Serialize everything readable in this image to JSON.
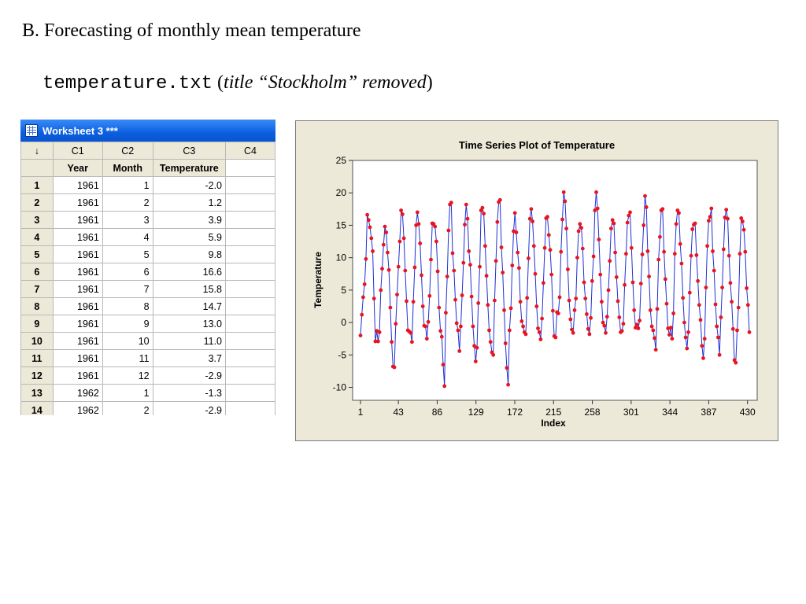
{
  "slide": {
    "title": "B. Forecasting of monthly mean temperature",
    "subtitle_file": "temperature.txt",
    "subtitle_open": "(",
    "subtitle_note": "title “Stockholm” removed",
    "subtitle_close": ")"
  },
  "worksheet": {
    "title": "Worksheet 3 ***",
    "corner_symbol": "↓",
    "columns": [
      "C1",
      "C2",
      "C3",
      "C4"
    ],
    "names": [
      "Year",
      "Month",
      "Temperature",
      ""
    ],
    "rows": [
      {
        "n": "1",
        "year": "1961",
        "month": "1",
        "temp": "-2.0"
      },
      {
        "n": "2",
        "year": "1961",
        "month": "2",
        "temp": "1.2"
      },
      {
        "n": "3",
        "year": "1961",
        "month": "3",
        "temp": "3.9"
      },
      {
        "n": "4",
        "year": "1961",
        "month": "4",
        "temp": "5.9"
      },
      {
        "n": "5",
        "year": "1961",
        "month": "5",
        "temp": "9.8"
      },
      {
        "n": "6",
        "year": "1961",
        "month": "6",
        "temp": "16.6"
      },
      {
        "n": "7",
        "year": "1961",
        "month": "7",
        "temp": "15.8"
      },
      {
        "n": "8",
        "year": "1961",
        "month": "8",
        "temp": "14.7"
      },
      {
        "n": "9",
        "year": "1961",
        "month": "9",
        "temp": "13.0"
      },
      {
        "n": "10",
        "year": "1961",
        "month": "10",
        "temp": "11.0"
      },
      {
        "n": "11",
        "year": "1961",
        "month": "11",
        "temp": "3.7"
      },
      {
        "n": "12",
        "year": "1961",
        "month": "12",
        "temp": "-2.9"
      },
      {
        "n": "13",
        "year": "1962",
        "month": "1",
        "temp": "-1.3"
      },
      {
        "n": "14",
        "year": "1962",
        "month": "2",
        "temp": "-2.9"
      }
    ]
  },
  "chart_data": {
    "type": "line",
    "title": "Time Series Plot of Temperature",
    "xlabel": "Index",
    "ylabel": "Temperature",
    "xlim": [
      1,
      432
    ],
    "ylim": [
      -12,
      25
    ],
    "x_ticks": [
      1,
      43,
      86,
      129,
      172,
      215,
      258,
      301,
      344,
      387,
      430
    ],
    "y_ticks": [
      -10,
      -5,
      0,
      5,
      10,
      15,
      20,
      25
    ],
    "grid": false,
    "line_color": "#1f2fd6",
    "marker_color": "#e8141e",
    "series": [
      {
        "values": [
          -2.0,
          1.2,
          3.9,
          5.9,
          9.8,
          16.6,
          15.8,
          14.7,
          13.0,
          11.0,
          3.7,
          -2.9,
          -1.3,
          -2.9,
          -1.5,
          5.0,
          8.3,
          12.0,
          14.8,
          13.9,
          10.8,
          8.1,
          2.3,
          -3.0,
          -6.8,
          -6.9,
          -0.2,
          4.3,
          8.6,
          12.5,
          17.3,
          16.7,
          13.0,
          8.0,
          3.3,
          -1.2,
          -1.4,
          -1.6,
          -3.0,
          3.2,
          8.5,
          15.0,
          17.0,
          15.2,
          12.2,
          7.3,
          2.5,
          -0.5,
          -0.6,
          -2.5,
          0.1,
          4.1,
          9.7,
          15.3,
          15.2,
          14.8,
          12.5,
          7.9,
          2.3,
          -1.3,
          -2.2,
          -6.5,
          -9.8,
          1.5,
          7.1,
          14.2,
          18.2,
          18.5,
          10.7,
          8.0,
          3.5,
          -0.1,
          -1.2,
          -4.4,
          -0.6,
          4.2,
          9.2,
          15.1,
          18.2,
          16.0,
          11.0,
          8.9,
          4.0,
          -0.6,
          -3.6,
          -6.0,
          -3.9,
          3.0,
          8.6,
          17.3,
          17.7,
          16.8,
          11.8,
          7.2,
          2.7,
          -1.2,
          -3.0,
          -4.6,
          -5.0,
          3.4,
          9.5,
          15.5,
          18.6,
          18.9,
          11.6,
          7.7,
          1.9,
          -3.2,
          -7.0,
          -9.6,
          -1.2,
          2.2,
          8.8,
          14.1,
          16.9,
          13.9,
          10.8,
          8.4,
          3.2,
          0.2,
          -0.6,
          -1.5,
          -1.8,
          3.8,
          9.9,
          16.0,
          17.5,
          15.6,
          11.8,
          7.5,
          2.5,
          -0.9,
          -1.5,
          -2.6,
          0.6,
          6.1,
          11.5,
          16.1,
          16.3,
          13.5,
          11.2,
          7.4,
          1.8,
          -2.1,
          -2.3,
          1.6,
          1.4,
          3.9,
          10.9,
          15.9,
          20.1,
          18.7,
          14.5,
          8.2,
          3.4,
          0.5,
          -1.1,
          -1.6,
          1.9,
          3.7,
          10.0,
          14.1,
          15.2,
          14.6,
          11.4,
          6.2,
          3.7,
          1.3,
          -1.0,
          -1.8,
          0.7,
          6.4,
          10.2,
          17.3,
          20.1,
          17.6,
          12.8,
          7.4,
          3.2,
          0.0,
          -0.5,
          -1.6,
          0.9,
          5.0,
          9.5,
          14.5,
          15.8,
          15.3,
          10.8,
          7.0,
          3.3,
          0.8,
          -1.5,
          -1.3,
          -0.2,
          5.8,
          10.6,
          15.4,
          16.5,
          17.0,
          11.5,
          6.2,
          1.9,
          -0.8,
          -0.3,
          -0.9,
          0.3,
          6.0,
          10.5,
          15.0,
          19.5,
          17.8,
          11.0,
          7.1,
          1.9,
          -0.6,
          -1.2,
          -2.4,
          -4.2,
          2.1,
          9.7,
          13.2,
          17.3,
          17.5,
          10.9,
          6.7,
          2.9,
          -0.9,
          -1.9,
          -0.8,
          -2.5,
          1.4,
          10.6,
          15.2,
          17.3,
          16.9,
          12.1,
          9.1,
          3.8,
          0.0,
          -2.3,
          -4.0,
          -1.5,
          4.6,
          10.3,
          14.4,
          15.1,
          15.3,
          10.4,
          6.4,
          2.7,
          0.4,
          -3.6,
          -5.5,
          -2.5,
          5.4,
          11.8,
          15.7,
          16.3,
          17.6,
          11.0,
          8.0,
          2.8,
          -0.6,
          -2.3,
          -5.0,
          0.8,
          5.4,
          11.3,
          16.2,
          17.4,
          16.0,
          10.3,
          6.1,
          3.2,
          -1.0,
          -5.8,
          -6.2,
          -1.2,
          2.3,
          10.6,
          16.1,
          15.6,
          14.3,
          10.9,
          5.3,
          2.7,
          -1.5
        ],
        "x_start": 1
      }
    ]
  }
}
